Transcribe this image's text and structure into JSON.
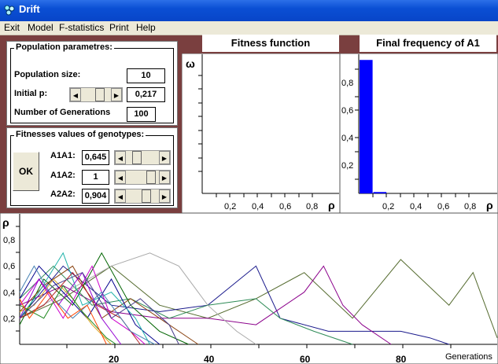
{
  "window": {
    "title": "Drift"
  },
  "menu": [
    "Exit",
    "Model",
    "F-statistics",
    "Print",
    "Help"
  ],
  "population": {
    "group_title": "Population parametres:",
    "size_label": "Population size:",
    "size_value": "10",
    "initial_p_label": "Initial p:",
    "initial_p_value": "0,217",
    "generations_label": "Number of Generations",
    "generations_value": "100"
  },
  "fitness": {
    "group_title": "Fitnesses values of genotypes:",
    "ok_label": "OK",
    "rows": [
      {
        "label": "A1A1:",
        "value": "0,645"
      },
      {
        "label": "A1A2:",
        "value": "1"
      },
      {
        "label": "A2A2:",
        "value": "0,904"
      }
    ]
  },
  "fitness_plot": {
    "title": "Fitness function",
    "ylabel": "ω",
    "xlabel": "ρ",
    "xticks": [
      "0,2",
      "0,4",
      "0,6",
      "0,8"
    ]
  },
  "final_freq": {
    "title": "Final frequency of A1",
    "xlabel": "ρ",
    "yticks": [
      "0,8",
      "0,6",
      "0,4",
      "0,2"
    ],
    "xticks": [
      "0,2",
      "0,4",
      "0,6",
      "0,8"
    ]
  },
  "drift_plot": {
    "ylabel": "ρ",
    "xlabel": "Generations",
    "yticks": [
      "0,8",
      "0,6",
      "0,4",
      "0,2"
    ],
    "xticks": [
      "20",
      "40",
      "60",
      "80"
    ]
  },
  "chart_data": [
    {
      "type": "line",
      "title": "",
      "xlabel": "ρ",
      "ylabel": "ω",
      "series": []
    },
    {
      "type": "bar",
      "title": "Final frequency of A1",
      "xlabel": "ρ",
      "categories": [
        "0-0.05",
        "0.05-0.1"
      ],
      "values": [
        0.97,
        0.01
      ],
      "ylim": [
        0,
        1
      ],
      "colors": [
        "#0000ff"
      ]
    },
    {
      "type": "line",
      "title": "",
      "xlabel": "Generations",
      "ylabel": "ρ",
      "xlim": [
        1,
        100
      ],
      "ylim": [
        0,
        1
      ],
      "series": [
        {
          "color": "#556b2f",
          "points": [
            [
              1,
              0.2
            ],
            [
              10,
              0.35
            ],
            [
              20,
              0.6
            ],
            [
              30,
              0.3
            ],
            [
              40,
              0.2
            ],
            [
              50,
              0.35
            ],
            [
              60,
              0.55
            ],
            [
              70,
              0.2
            ],
            [
              80,
              0.65
            ],
            [
              90,
              0.3
            ],
            [
              95,
              0.55
            ],
            [
              100,
              0.05
            ]
          ]
        },
        {
          "color": "#1a1a8c",
          "points": [
            [
              1,
              0.2
            ],
            [
              10,
              0.6
            ],
            [
              20,
              0.3
            ],
            [
              30,
              0.25
            ],
            [
              40,
              0.3
            ],
            [
              50,
              0.6
            ],
            [
              55,
              0.2
            ],
            [
              65,
              0.1
            ],
            [
              72,
              0.1
            ],
            [
              80,
              0.1
            ],
            [
              86,
              0.05
            ],
            [
              90,
              0.0
            ]
          ]
        },
        {
          "color": "#8b008b",
          "points": [
            [
              1,
              0.3
            ],
            [
              10,
              0.45
            ],
            [
              20,
              0.25
            ],
            [
              30,
              0.2
            ],
            [
              40,
              0.2
            ],
            [
              50,
              0.15
            ],
            [
              60,
              0.4
            ],
            [
              64,
              0.6
            ],
            [
              68,
              0.3
            ],
            [
              72,
              0.15
            ],
            [
              78,
              0.0
            ]
          ]
        },
        {
          "color": "#2e8b57",
          "points": [
            [
              1,
              0.35
            ],
            [
              8,
              0.6
            ],
            [
              16,
              0.3
            ],
            [
              24,
              0.35
            ],
            [
              32,
              0.2
            ],
            [
              40,
              0.3
            ],
            [
              50,
              0.35
            ],
            [
              55,
              0.2
            ],
            [
              62,
              0.1
            ],
            [
              70,
              0.0
            ]
          ]
        },
        {
          "color": "#aaaaaa",
          "points": [
            [
              1,
              0.2
            ],
            [
              20,
              0.6
            ],
            [
              28,
              0.7
            ],
            [
              34,
              0.6
            ],
            [
              40,
              0.3
            ],
            [
              46,
              0.1
            ],
            [
              50,
              0.0
            ]
          ]
        },
        {
          "color": "#006400",
          "points": [
            [
              1,
              0.15
            ],
            [
              6,
              0.5
            ],
            [
              12,
              0.3
            ],
            [
              18,
              0.7
            ],
            [
              24,
              0.3
            ],
            [
              30,
              0.1
            ],
            [
              36,
              0.0
            ]
          ]
        },
        {
          "color": "#8b4513",
          "points": [
            [
              1,
              0.25
            ],
            [
              6,
              0.45
            ],
            [
              12,
              0.6
            ],
            [
              18,
              0.2
            ],
            [
              24,
              0.35
            ],
            [
              30,
              0.2
            ],
            [
              38,
              0.0
            ]
          ]
        },
        {
          "color": "#00008b",
          "points": [
            [
              1,
              0.35
            ],
            [
              5,
              0.6
            ],
            [
              10,
              0.4
            ],
            [
              15,
              0.2
            ],
            [
              20,
              0.5
            ],
            [
              25,
              0.15
            ],
            [
              30,
              0.0
            ]
          ]
        },
        {
          "color": "#20b2aa",
          "points": [
            [
              1,
              0.2
            ],
            [
              5,
              0.4
            ],
            [
              10,
              0.7
            ],
            [
              14,
              0.3
            ],
            [
              20,
              0.4
            ],
            [
              25,
              0.2
            ],
            [
              28,
              0.0
            ]
          ]
        },
        {
          "color": "#cc00cc",
          "points": [
            [
              1,
              0.3
            ],
            [
              5,
              0.5
            ],
            [
              10,
              0.2
            ],
            [
              16,
              0.6
            ],
            [
              20,
              0.2
            ],
            [
              24,
              0.1
            ],
            [
              27,
              0.0
            ]
          ]
        },
        {
          "color": "#b22222",
          "points": [
            [
              1,
              0.2
            ],
            [
              6,
              0.3
            ],
            [
              12,
              0.55
            ],
            [
              17,
              0.3
            ],
            [
              22,
              0.2
            ],
            [
              26,
              0.0
            ]
          ]
        },
        {
          "color": "#4682b4",
          "points": [
            [
              1,
              0.4
            ],
            [
              4,
              0.6
            ],
            [
              8,
              0.35
            ],
            [
              12,
              0.2
            ],
            [
              18,
              0.4
            ],
            [
              24,
              0.1
            ],
            [
              29,
              0.0
            ]
          ]
        },
        {
          "color": "#daa520",
          "points": [
            [
              1,
              0.25
            ],
            [
              4,
              0.3
            ],
            [
              8,
              0.5
            ],
            [
              12,
              0.35
            ],
            [
              16,
              0.15
            ],
            [
              20,
              0.0
            ]
          ]
        },
        {
          "color": "#9400d3",
          "points": [
            [
              1,
              0.2
            ],
            [
              5,
              0.5
            ],
            [
              9,
              0.3
            ],
            [
              14,
              0.55
            ],
            [
              18,
              0.2
            ],
            [
              22,
              0.0
            ]
          ]
        },
        {
          "color": "#228b22",
          "points": [
            [
              1,
              0.3
            ],
            [
              6,
              0.2
            ],
            [
              10,
              0.45
            ],
            [
              14,
              0.25
            ],
            [
              19,
              0.05
            ],
            [
              21,
              0.0
            ]
          ]
        },
        {
          "color": "#ff4500",
          "points": [
            [
              1,
              0.35
            ],
            [
              3,
              0.2
            ],
            [
              7,
              0.4
            ],
            [
              11,
              0.2
            ],
            [
              15,
              0.3
            ],
            [
              19,
              0.0
            ]
          ]
        },
        {
          "color": "#483d8b",
          "points": [
            [
              1,
              0.2
            ],
            [
              8,
              0.45
            ],
            [
              14,
              0.55
            ],
            [
              20,
              0.2
            ],
            [
              26,
              0.35
            ],
            [
              32,
              0.15
            ],
            [
              34,
              0.0
            ]
          ]
        }
      ]
    }
  ]
}
